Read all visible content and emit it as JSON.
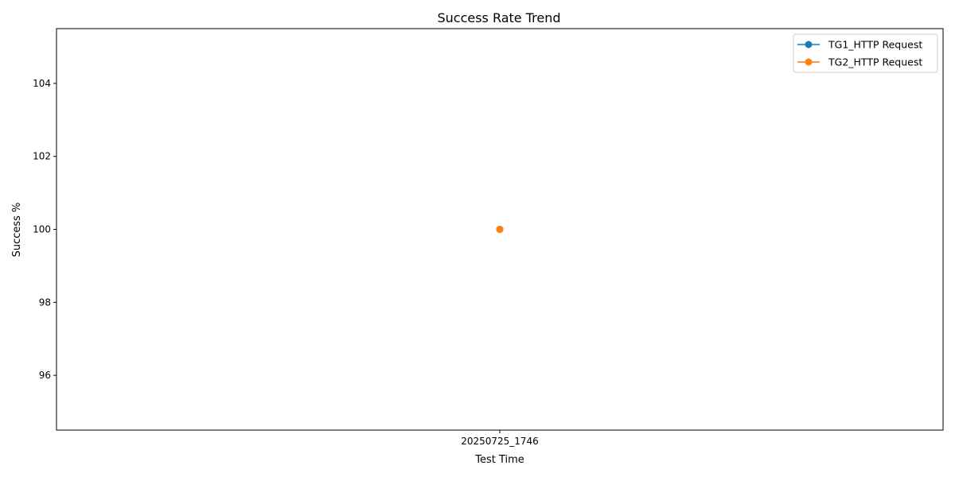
{
  "chart_data": {
    "type": "line",
    "title": "Success Rate Trend",
    "xlabel": "Test Time",
    "ylabel": "Success %",
    "categories": [
      "20250725_1746"
    ],
    "ylim": [
      94.5,
      105.5
    ],
    "yticks": [
      96,
      98,
      100,
      102,
      104
    ],
    "grid": false,
    "legend_position": "top-right",
    "series": [
      {
        "name": "TG1_HTTP Request",
        "values": [
          100
        ],
        "color": "#1f77b4",
        "marker": "circle"
      },
      {
        "name": "TG2_HTTP Request",
        "values": [
          100
        ],
        "color": "#ff7f0e",
        "marker": "circle"
      }
    ]
  }
}
